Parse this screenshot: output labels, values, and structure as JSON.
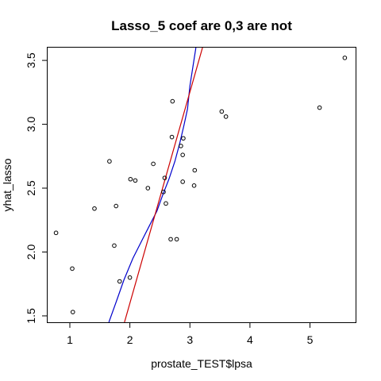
{
  "chart_data": {
    "type": "scatter",
    "title": "Lasso_5 coef are 0,3 are not",
    "xlabel": "prostate_TEST$lpsa",
    "ylabel": "yhat_lasso",
    "xlim": [
      0.63,
      5.76
    ],
    "ylim": [
      1.45,
      3.6
    ],
    "x_ticks": [
      1,
      2,
      3,
      4,
      5
    ],
    "y_ticks": [
      1.5,
      2.0,
      2.5,
      3.0,
      3.5
    ],
    "x_tick_labels": [
      "1",
      "2",
      "3",
      "4",
      "5"
    ],
    "y_tick_labels": [
      "1.5",
      "2.0",
      "2.5",
      "3.0",
      "3.5"
    ],
    "grid": false,
    "legend": "none",
    "point_style": "open-circle",
    "points": [
      {
        "x": 0.77,
        "y": 2.15
      },
      {
        "x": 1.04,
        "y": 1.87
      },
      {
        "x": 1.05,
        "y": 1.53
      },
      {
        "x": 1.41,
        "y": 2.34
      },
      {
        "x": 1.66,
        "y": 2.71
      },
      {
        "x": 1.74,
        "y": 2.05
      },
      {
        "x": 1.77,
        "y": 2.36
      },
      {
        "x": 1.83,
        "y": 1.77
      },
      {
        "x": 2.0,
        "y": 1.8
      },
      {
        "x": 2.01,
        "y": 2.57
      },
      {
        "x": 2.09,
        "y": 2.56
      },
      {
        "x": 2.3,
        "y": 2.5
      },
      {
        "x": 2.39,
        "y": 2.69
      },
      {
        "x": 2.56,
        "y": 2.47
      },
      {
        "x": 2.58,
        "y": 2.58
      },
      {
        "x": 2.6,
        "y": 2.38
      },
      {
        "x": 2.68,
        "y": 2.1
      },
      {
        "x": 2.7,
        "y": 2.9
      },
      {
        "x": 2.71,
        "y": 3.18
      },
      {
        "x": 2.78,
        "y": 2.1
      },
      {
        "x": 2.85,
        "y": 2.83
      },
      {
        "x": 2.88,
        "y": 2.76
      },
      {
        "x": 2.89,
        "y": 2.89
      },
      {
        "x": 2.88,
        "y": 2.55
      },
      {
        "x": 3.08,
        "y": 2.64
      },
      {
        "x": 3.07,
        "y": 2.52
      },
      {
        "x": 3.53,
        "y": 3.1
      },
      {
        "x": 3.6,
        "y": 3.06
      },
      {
        "x": 5.16,
        "y": 3.13
      },
      {
        "x": 5.58,
        "y": 3.52
      }
    ],
    "lines": [
      {
        "color": "#0000cc",
        "points": [
          {
            "x": 1.65,
            "y": 1.45
          },
          {
            "x": 1.78,
            "y": 1.62
          },
          {
            "x": 1.9,
            "y": 1.78
          },
          {
            "x": 2.05,
            "y": 1.95
          },
          {
            "x": 2.2,
            "y": 2.09
          },
          {
            "x": 2.33,
            "y": 2.21
          },
          {
            "x": 2.45,
            "y": 2.32
          },
          {
            "x": 2.55,
            "y": 2.45
          },
          {
            "x": 2.65,
            "y": 2.57
          },
          {
            "x": 2.75,
            "y": 2.71
          },
          {
            "x": 2.83,
            "y": 2.85
          },
          {
            "x": 2.9,
            "y": 2.99
          },
          {
            "x": 2.96,
            "y": 3.12
          },
          {
            "x": 3.0,
            "y": 3.3
          },
          {
            "x": 3.05,
            "y": 3.45
          },
          {
            "x": 3.1,
            "y": 3.6
          }
        ]
      },
      {
        "color": "#cc0000",
        "points": [
          {
            "x": 1.91,
            "y": 1.45
          },
          {
            "x": 3.21,
            "y": 3.6
          }
        ]
      }
    ]
  }
}
